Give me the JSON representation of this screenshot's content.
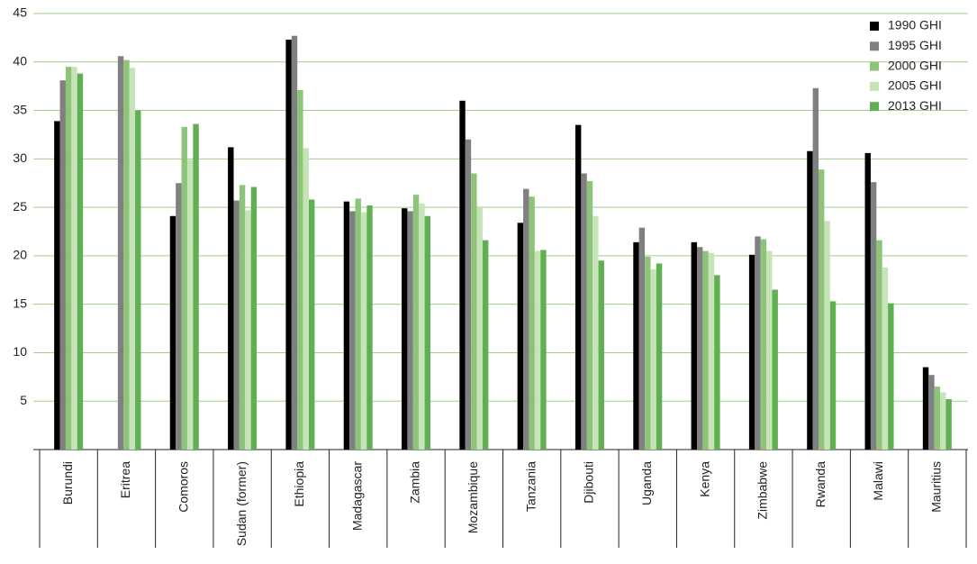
{
  "chart_data": {
    "type": "bar",
    "categories": [
      "Burundi",
      "Eritrea",
      "Comoros",
      "Sudan (former)",
      "Ethiopia",
      "Madagascar",
      "Zambia",
      "Mozambique",
      "Tanzania",
      "Djibouti",
      "Uganda",
      "Kenya",
      "Zimbabwe",
      "Rwanda",
      "Malawi",
      "Mauritius"
    ],
    "series": [
      {
        "name": "1990 GHI",
        "color": "#000000",
        "values": [
          33.9,
          null,
          24.1,
          31.2,
          42.3,
          25.6,
          24.9,
          36.0,
          23.4,
          33.5,
          21.4,
          21.4,
          20.1,
          30.8,
          30.6,
          8.5
        ]
      },
      {
        "name": "1995 GHI",
        "color": "#808080",
        "values": [
          38.1,
          40.6,
          27.5,
          25.7,
          42.7,
          24.6,
          24.6,
          32.0,
          26.9,
          28.5,
          22.9,
          20.9,
          22.0,
          37.3,
          27.6,
          7.7
        ]
      },
      {
        "name": "2000 GHI",
        "color": "#8dc47a",
        "values": [
          39.5,
          40.2,
          33.3,
          27.3,
          37.1,
          25.9,
          26.3,
          28.5,
          26.1,
          27.7,
          19.9,
          20.5,
          21.7,
          28.9,
          21.6,
          6.5
        ]
      },
      {
        "name": "2005 GHI",
        "color": "#c7e3b8",
        "values": [
          39.5,
          39.4,
          29.9,
          24.7,
          31.1,
          24.5,
          25.4,
          25.1,
          20.5,
          24.1,
          18.6,
          20.3,
          20.5,
          23.6,
          18.8,
          5.9
        ]
      },
      {
        "name": "2013 GHI",
        "color": "#5fb052",
        "values": [
          38.8,
          35.0,
          33.6,
          27.1,
          25.8,
          25.2,
          24.1,
          21.6,
          20.6,
          19.5,
          19.2,
          18.0,
          16.5,
          15.3,
          15.1,
          5.2
        ]
      }
    ],
    "ylim": [
      0,
      45
    ],
    "yticks": [
      5,
      10,
      15,
      20,
      25,
      30,
      35,
      40,
      45
    ],
    "grid": true,
    "legend": "top-right"
  }
}
